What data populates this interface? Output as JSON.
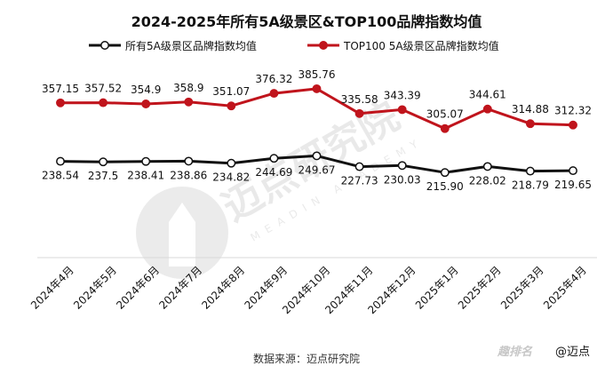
{
  "chart_data": {
    "type": "line",
    "title": "2024-2025年所有5A级景区&TOP100品牌指数均值",
    "categories": [
      "2024年4月",
      "2024年5月",
      "2024年6月",
      "2024年7月",
      "2024年8月",
      "2024年9月",
      "2024年10月",
      "2024年11月",
      "2024年12月",
      "2025年1月",
      "2025年2月",
      "2025年3月",
      "2025年4月"
    ],
    "series": [
      {
        "name": "所有5A级景区品牌指数均值",
        "color": "#111111",
        "values": [
          238.54,
          237.5,
          238.41,
          238.86,
          234.82,
          244.69,
          249.67,
          227.73,
          230.03,
          215.9,
          228.02,
          218.79,
          219.65
        ],
        "labels": [
          "238.54",
          "237.5",
          "238.41",
          "238.86",
          "234.82",
          "244.69",
          "249.67",
          "227.73",
          "230.03",
          "215.90",
          "228.02",
          "218.79",
          "219.65"
        ]
      },
      {
        "name": "TOP100 5A级景区品牌指数均值",
        "color": "#c0141c",
        "values": [
          357.15,
          357.52,
          354.9,
          358.9,
          351.07,
          376.32,
          385.76,
          335.58,
          343.39,
          305.07,
          344.61,
          314.88,
          312.32
        ],
        "labels": [
          "357.15",
          "357.52",
          "354.9",
          "358.9",
          "351.07",
          "376.32",
          "385.76",
          "335.58",
          "343.39",
          "305.07",
          "344.61",
          "314.88",
          "312.32"
        ]
      }
    ],
    "ylim": [
      150,
      420
    ],
    "grid": false,
    "legend_position": "top-center"
  },
  "source": "数据来源：迈点研究院",
  "watermark": {
    "brand_cn": "迈点研究院",
    "brand_en": "MEADIN ACADEMY"
  },
  "footer_brand": {
    "logo_text": "趣排名",
    "handle": "@迈点"
  }
}
